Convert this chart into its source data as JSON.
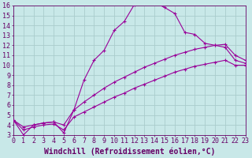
{
  "xlabel": "Windchill (Refroidissement éolien,°C)",
  "bg_color": "#c8e8e8",
  "line_color": "#990099",
  "grid_color": "#aacccc",
  "xmin": 0,
  "xmax": 23,
  "ymin": 3,
  "ymax": 16,
  "curve1_x": [
    0,
    1,
    2,
    3,
    4,
    5,
    6,
    7,
    8,
    9,
    10,
    11,
    12,
    13,
    14,
    15,
    16,
    17,
    18,
    19,
    20,
    21,
    22,
    23
  ],
  "curve1_y": [
    4.5,
    3.0,
    4.0,
    4.2,
    4.3,
    3.2,
    5.5,
    8.5,
    10.5,
    11.5,
    13.5,
    14.4,
    16.1,
    16.3,
    16.3,
    15.8,
    15.2,
    13.3,
    13.1,
    12.2,
    12.0,
    11.8,
    10.5,
    10.2
  ],
  "curve2_x": [
    0,
    1,
    2,
    3,
    4,
    5,
    6,
    7,
    8,
    9,
    10,
    11,
    12,
    13,
    14,
    15,
    16,
    17,
    18,
    19,
    20,
    21,
    22,
    23
  ],
  "curve2_y": [
    4.5,
    3.8,
    4.0,
    4.2,
    4.3,
    4.0,
    5.5,
    6.3,
    7.0,
    7.7,
    8.3,
    8.8,
    9.3,
    9.8,
    10.2,
    10.6,
    11.0,
    11.3,
    11.6,
    11.8,
    12.0,
    12.1,
    11.0,
    10.5
  ],
  "curve3_x": [
    0,
    1,
    2,
    3,
    4,
    5,
    6,
    7,
    8,
    9,
    10,
    11,
    12,
    13,
    14,
    15,
    16,
    17,
    18,
    19,
    20,
    21,
    22,
    23
  ],
  "curve3_y": [
    4.5,
    3.5,
    3.8,
    4.0,
    4.1,
    3.5,
    4.8,
    5.3,
    5.8,
    6.3,
    6.8,
    7.2,
    7.7,
    8.1,
    8.5,
    8.9,
    9.3,
    9.6,
    9.9,
    10.1,
    10.3,
    10.5,
    10.0,
    10.0
  ],
  "xlabel_color": "#660066",
  "tick_color": "#660066",
  "xlabel_fontsize": 7.0,
  "tick_fontsize": 6.0
}
